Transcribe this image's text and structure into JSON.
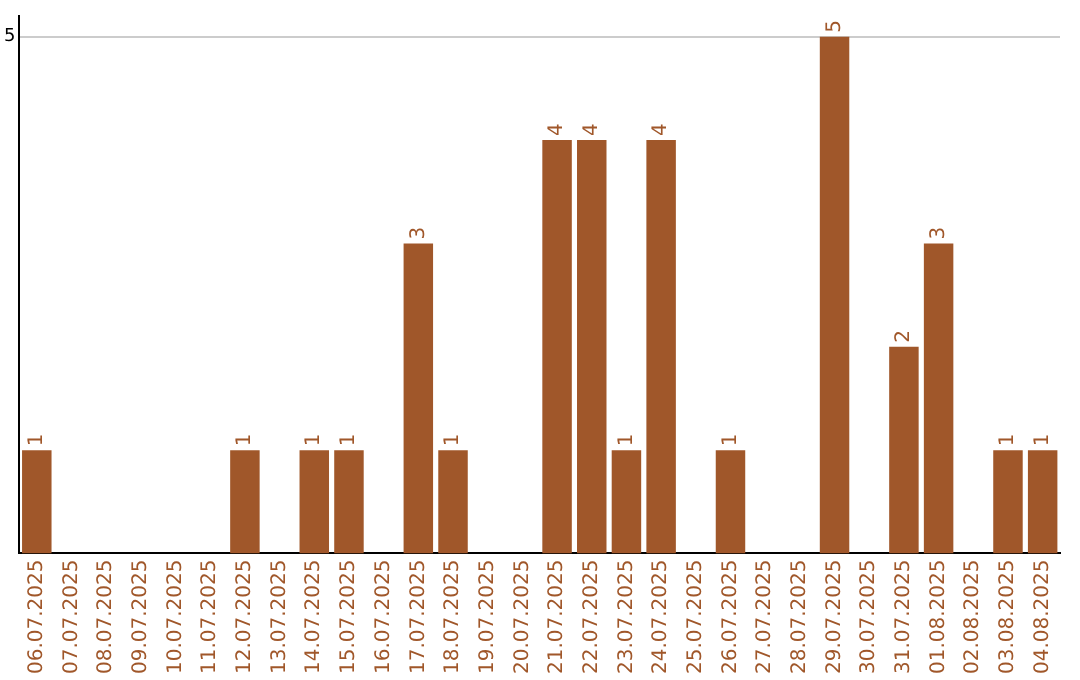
{
  "chart_data": {
    "type": "bar",
    "categories": [
      "06.07.2025",
      "07.07.2025",
      "08.07.2025",
      "09.07.2025",
      "10.07.2025",
      "11.07.2025",
      "12.07.2025",
      "13.07.2025",
      "14.07.2025",
      "15.07.2025",
      "16.07.2025",
      "17.07.2025",
      "18.07.2025",
      "19.07.2025",
      "20.07.2025",
      "21.07.2025",
      "22.07.2025",
      "23.07.2025",
      "24.07.2025",
      "25.07.2025",
      "26.07.2025",
      "27.07.2025",
      "28.07.2025",
      "29.07.2025",
      "30.07.2025",
      "31.07.2025",
      "01.08.2025",
      "02.08.2025",
      "03.08.2025",
      "04.08.2025"
    ],
    "values": [
      1,
      0,
      0,
      0,
      0,
      0,
      1,
      0,
      1,
      1,
      0,
      3,
      1,
      0,
      0,
      4,
      4,
      1,
      4,
      0,
      1,
      0,
      0,
      5,
      0,
      2,
      3,
      0,
      1,
      1
    ],
    "value_labels": [
      "1",
      null,
      null,
      null,
      null,
      null,
      "1",
      null,
      "1",
      "1",
      null,
      "3",
      "1",
      null,
      null,
      "4",
      "4",
      "1",
      "4",
      null,
      "1",
      null,
      null,
      "5",
      null,
      "2",
      "3",
      null,
      "1",
      "1"
    ],
    "color": "#a0572a",
    "ylim": [
      0,
      5.2
    ],
    "yticks": [
      5
    ],
    "grid": "y",
    "legend": false
  }
}
